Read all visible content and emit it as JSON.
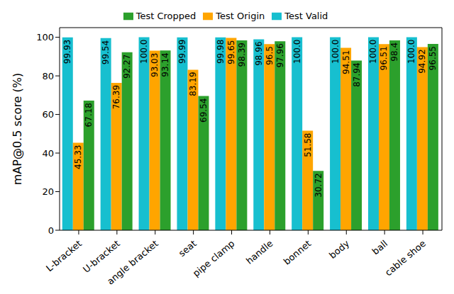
{
  "chart_data": {
    "type": "bar",
    "y_label": "mAP@0.5 score (%)",
    "categories": [
      "L-bracket",
      "U-bracket",
      "angle bracket",
      "seat",
      "pipe clamp",
      "handle",
      "bonnet",
      "body",
      "ball",
      "cable shoe"
    ],
    "series": [
      {
        "name": "Test Valid",
        "color": "#17bfcf",
        "values": [
          99.93,
          99.54,
          100.0,
          99.99,
          99.98,
          98.96,
          100.0,
          100.0,
          100.0,
          100.0
        ],
        "value_labels": [
          "99.93",
          "99.54",
          "100.0",
          "99.99",
          "99.98",
          "98.96",
          "100.0",
          "100.0",
          "100.0",
          "100.0"
        ]
      },
      {
        "name": "Test Origin",
        "color": "#ffa500",
        "values": [
          45.33,
          76.39,
          93.03,
          83.19,
          99.65,
          96.5,
          51.58,
          94.51,
          96.51,
          94.92
        ],
        "value_labels": [
          "45.33",
          "76.39",
          "93.03",
          "83.19",
          "99.65",
          "96.5",
          "51.58",
          "94.51",
          "96.51",
          "94.92"
        ]
      },
      {
        "name": "Test Cropped",
        "color": "#2ca02c",
        "values": [
          67.18,
          92.27,
          93.14,
          69.54,
          98.39,
          97.96,
          30.72,
          87.94,
          98.4,
          96.55
        ],
        "value_labels": [
          "67.18",
          "92.27",
          "93.14",
          "69.54",
          "98.39",
          "97.96",
          "30.72",
          "87.94",
          "98.4",
          "96.55"
        ]
      }
    ],
    "ylim": [
      0,
      105
    ],
    "yticks": [
      0,
      20,
      40,
      60,
      80,
      100
    ],
    "grid": false,
    "legend": "top",
    "data_labels": true
  }
}
